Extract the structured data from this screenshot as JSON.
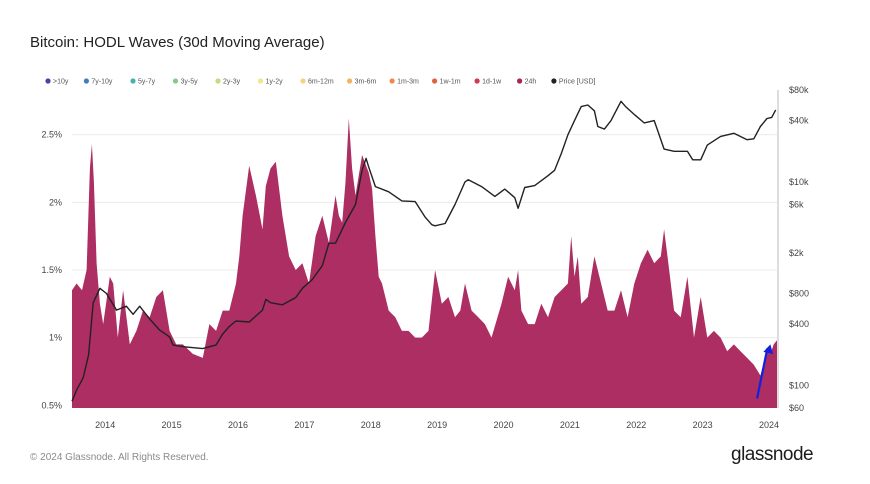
{
  "title": "Bitcoin: HODL Waves (30d Moving Average)",
  "footer": "© 2024 Glassnode. All Rights Reserved.",
  "logo": "glassnode",
  "colors": {
    "wave": "#a8235a",
    "price": "#222222",
    "arrow": "#1420e0"
  },
  "legend": [
    {
      "label": ">10y",
      "color": "#5a3a9e"
    },
    {
      "label": "7y-10y",
      "color": "#3d7fc1"
    },
    {
      "label": "5y-7y",
      "color": "#45b1b1"
    },
    {
      "label": "3y-5y",
      "color": "#86c98c"
    },
    {
      "label": "2y-3y",
      "color": "#c2dd7d"
    },
    {
      "label": "1y-2y",
      "color": "#ecea8c"
    },
    {
      "label": "6m-12m",
      "color": "#f4d47b"
    },
    {
      "label": "3m-6m",
      "color": "#f3b25f"
    },
    {
      "label": "1m-3m",
      "color": "#ee8b4a"
    },
    {
      "label": "1w-1m",
      "color": "#e0613c"
    },
    {
      "label": "1d-1w",
      "color": "#cf3a4c"
    },
    {
      "label": "24h",
      "color": "#a8235a"
    },
    {
      "label": "Price [USD]",
      "color": "#222222"
    }
  ],
  "chart_data": {
    "type": "area",
    "title": "Bitcoin: HODL Waves (30d Moving Average)",
    "x_ticks": [
      "2014",
      "2015",
      "2016",
      "2017",
      "2018",
      "2019",
      "2020",
      "2021",
      "2022",
      "2023",
      "2024"
    ],
    "x_range": [
      2013.53,
      2024.15
    ],
    "y_left": {
      "label": "",
      "ticks": [
        "0.5%",
        "1%",
        "1.5%",
        "2%",
        "2.5%"
      ],
      "tick_values": [
        0.5,
        1.0,
        1.5,
        2.0,
        2.5
      ],
      "range": [
        0.48,
        2.83
      ]
    },
    "y_right": {
      "label": "",
      "scale": "log",
      "ticks": [
        "$60",
        "$100",
        "$400",
        "$800",
        "$2k",
        "$6k",
        "$10k",
        "$40k",
        "$80k"
      ],
      "tick_values": [
        60,
        100,
        400,
        800,
        2000,
        6000,
        10000,
        40000,
        80000
      ],
      "range": [
        60,
        80000
      ]
    },
    "series": [
      {
        "name": "24h",
        "axis": "left",
        "x": [
          2013.53,
          2013.6,
          2013.68,
          2013.75,
          2013.8,
          2013.83,
          2013.86,
          2013.9,
          2013.95,
          2014.0,
          2014.1,
          2014.15,
          2014.22,
          2014.3,
          2014.4,
          2014.5,
          2014.6,
          2014.7,
          2014.8,
          2014.9,
          2015.0,
          2015.1,
          2015.2,
          2015.35,
          2015.5,
          2015.6,
          2015.7,
          2015.8,
          2015.9,
          2016.0,
          2016.05,
          2016.1,
          2016.2,
          2016.3,
          2016.4,
          2016.45,
          2016.52,
          2016.6,
          2016.7,
          2016.8,
          2016.9,
          2017.0,
          2017.1,
          2017.2,
          2017.3,
          2017.4,
          2017.5,
          2017.55,
          2017.6,
          2017.65,
          2017.7,
          2017.75,
          2017.8,
          2017.9,
          2018.0,
          2018.05,
          2018.1,
          2018.15,
          2018.2,
          2018.3,
          2018.4,
          2018.5,
          2018.6,
          2018.7,
          2018.8,
          2018.9,
          2019.0,
          2019.1,
          2019.2,
          2019.3,
          2019.38,
          2019.45,
          2019.55,
          2019.65,
          2019.75,
          2019.85,
          2020.0,
          2020.1,
          2020.2,
          2020.25,
          2020.3,
          2020.4,
          2020.5,
          2020.6,
          2020.7,
          2020.8,
          2020.9,
          2021.0,
          2021.05,
          2021.1,
          2021.15,
          2021.2,
          2021.3,
          2021.4,
          2021.5,
          2021.6,
          2021.7,
          2021.8,
          2021.9,
          2022.0,
          2022.1,
          2022.2,
          2022.3,
          2022.4,
          2022.45,
          2022.5,
          2022.6,
          2022.7,
          2022.8,
          2022.9,
          2023.0,
          2023.1,
          2023.2,
          2023.3,
          2023.4,
          2023.5,
          2023.6,
          2023.7,
          2023.8,
          2023.9,
          2024.0,
          2024.05,
          2024.1,
          2024.15
        ],
        "y": [
          1.35,
          1.4,
          1.35,
          1.5,
          2.25,
          2.43,
          2.15,
          1.55,
          1.25,
          1.1,
          1.45,
          1.4,
          1.0,
          1.35,
          0.95,
          1.05,
          1.2,
          1.15,
          1.3,
          1.35,
          1.05,
          0.95,
          0.95,
          0.88,
          0.85,
          1.1,
          1.05,
          1.2,
          1.2,
          1.4,
          1.6,
          1.9,
          2.27,
          2.05,
          1.8,
          2.12,
          2.25,
          2.3,
          1.9,
          1.6,
          1.5,
          1.55,
          1.4,
          1.75,
          1.9,
          1.7,
          2.05,
          1.9,
          1.85,
          2.15,
          2.62,
          2.25,
          2.05,
          2.35,
          2.22,
          2.1,
          1.75,
          1.45,
          1.4,
          1.2,
          1.15,
          1.05,
          1.05,
          1.0,
          1.0,
          1.05,
          1.5,
          1.25,
          1.3,
          1.15,
          1.2,
          1.4,
          1.2,
          1.15,
          1.1,
          1.0,
          1.25,
          1.45,
          1.35,
          1.5,
          1.2,
          1.1,
          1.1,
          1.25,
          1.15,
          1.3,
          1.35,
          1.4,
          1.75,
          1.45,
          1.6,
          1.25,
          1.3,
          1.6,
          1.4,
          1.2,
          1.2,
          1.35,
          1.15,
          1.4,
          1.55,
          1.65,
          1.55,
          1.6,
          1.8,
          1.6,
          1.2,
          1.15,
          1.45,
          1.0,
          1.3,
          1.0,
          1.05,
          1.0,
          0.9,
          0.95,
          0.9,
          0.85,
          0.8,
          0.72,
          0.9,
          0.88,
          0.95,
          0.98
        ]
      },
      {
        "name": "Price [USD]",
        "axis": "right",
        "x": [
          2013.53,
          2013.6,
          2013.7,
          2013.78,
          2013.85,
          2013.95,
          2014.05,
          2014.2,
          2014.35,
          2014.45,
          2014.55,
          2014.7,
          2014.85,
          2015.0,
          2015.05,
          2015.2,
          2015.5,
          2015.7,
          2015.8,
          2015.9,
          2016.0,
          2016.2,
          2016.4,
          2016.45,
          2016.52,
          2016.7,
          2016.9,
          2017.0,
          2017.15,
          2017.3,
          2017.4,
          2017.5,
          2017.65,
          2017.8,
          2017.9,
          2017.96,
          2018.0,
          2018.1,
          2018.3,
          2018.5,
          2018.7,
          2018.85,
          2018.95,
          2019.0,
          2019.15,
          2019.3,
          2019.45,
          2019.5,
          2019.7,
          2019.9,
          2020.05,
          2020.2,
          2020.25,
          2020.35,
          2020.5,
          2020.7,
          2020.8,
          2020.9,
          2021.0,
          2021.1,
          2021.2,
          2021.3,
          2021.4,
          2021.45,
          2021.55,
          2021.65,
          2021.8,
          2021.87,
          2022.0,
          2022.15,
          2022.3,
          2022.45,
          2022.6,
          2022.8,
          2022.88,
          2023.0,
          2023.1,
          2023.3,
          2023.5,
          2023.7,
          2023.8,
          2023.9,
          2024.0,
          2024.07,
          2024.13
        ],
        "y": [
          70,
          90,
          120,
          200,
          650,
          900,
          800,
          550,
          600,
          500,
          600,
          450,
          350,
          300,
          250,
          240,
          230,
          250,
          320,
          380,
          430,
          420,
          550,
          700,
          650,
          620,
          730,
          900,
          1100,
          1500,
          2500,
          2500,
          4000,
          6000,
          13000,
          17000,
          14000,
          9000,
          8000,
          6500,
          6400,
          4500,
          3800,
          3700,
          3900,
          6000,
          10000,
          10500,
          9000,
          7200,
          8500,
          7000,
          5500,
          8800,
          9200,
          11500,
          13000,
          19000,
          29000,
          40000,
          55000,
          57000,
          50000,
          35000,
          33000,
          40000,
          62000,
          55000,
          46000,
          38000,
          40000,
          21000,
          20000,
          20000,
          16500,
          16500,
          23000,
          28000,
          30000,
          26000,
          26500,
          35000,
          42000,
          43000,
          51000
        ]
      }
    ],
    "annotations": [
      {
        "type": "arrow",
        "from": [
          2023.85,
          0.55
        ],
        "to": [
          2024.05,
          0.95
        ]
      }
    ]
  }
}
